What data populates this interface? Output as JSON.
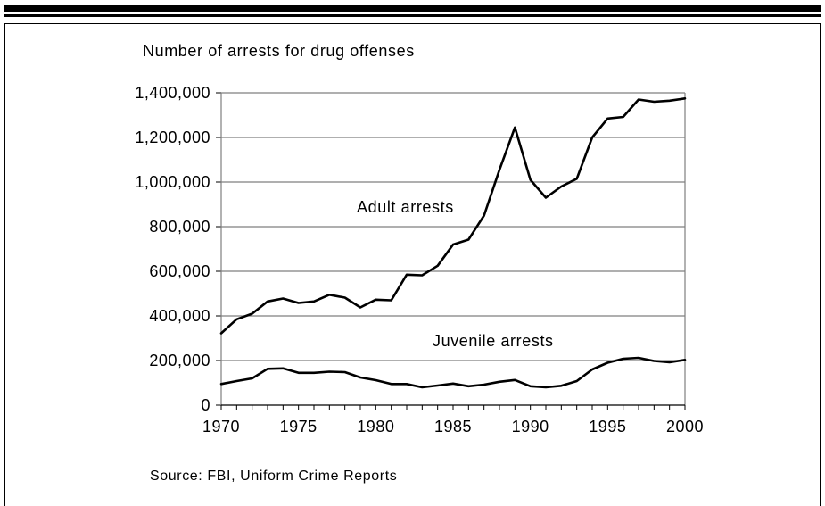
{
  "chart_data": {
    "type": "line",
    "title": "Number of arrests for drug offenses",
    "xlabel": "",
    "ylabel": "",
    "xlim": [
      1970,
      2000
    ],
    "ylim": [
      0,
      1400000
    ],
    "x_ticks": [
      "1970",
      "1975",
      "1980",
      "1985",
      "1990",
      "1995",
      "2000"
    ],
    "y_ticks": [
      "0",
      "200,000",
      "400,000",
      "600,000",
      "800,000",
      "1,000,000",
      "1,200,000",
      "1,400,000"
    ],
    "grid": "horizontal",
    "x": [
      1970,
      1971,
      1972,
      1973,
      1974,
      1975,
      1976,
      1977,
      1978,
      1979,
      1980,
      1981,
      1982,
      1983,
      1984,
      1985,
      1986,
      1987,
      1988,
      1989,
      1990,
      1991,
      1992,
      1993,
      1994,
      1995,
      1996,
      1997,
      1998,
      1999,
      2000
    ],
    "series": [
      {
        "name": "Adult arrests",
        "values": [
          322000,
          385000,
          410000,
          465000,
          478000,
          458000,
          465000,
          495000,
          482000,
          438000,
          473000,
          470000,
          585000,
          582000,
          625000,
          720000,
          742000,
          850000,
          1055000,
          1245000,
          1010000,
          930000,
          980000,
          1015000,
          1200000,
          1285000,
          1292000,
          1370000,
          1360000,
          1365000,
          1375000
        ]
      },
      {
        "name": "Juvenile arrests",
        "values": [
          95000,
          108000,
          120000,
          163000,
          165000,
          145000,
          145000,
          150000,
          148000,
          124000,
          112000,
          95000,
          95000,
          80000,
          88000,
          97000,
          85000,
          92000,
          105000,
          113000,
          85000,
          80000,
          87000,
          108000,
          160000,
          190000,
          208000,
          212000,
          198000,
          192000,
          203000
        ]
      }
    ],
    "annotations": [
      "Adult arrests",
      "Juvenile arrests"
    ],
    "source": "Source:  FBI, Uniform Crime Reports"
  }
}
